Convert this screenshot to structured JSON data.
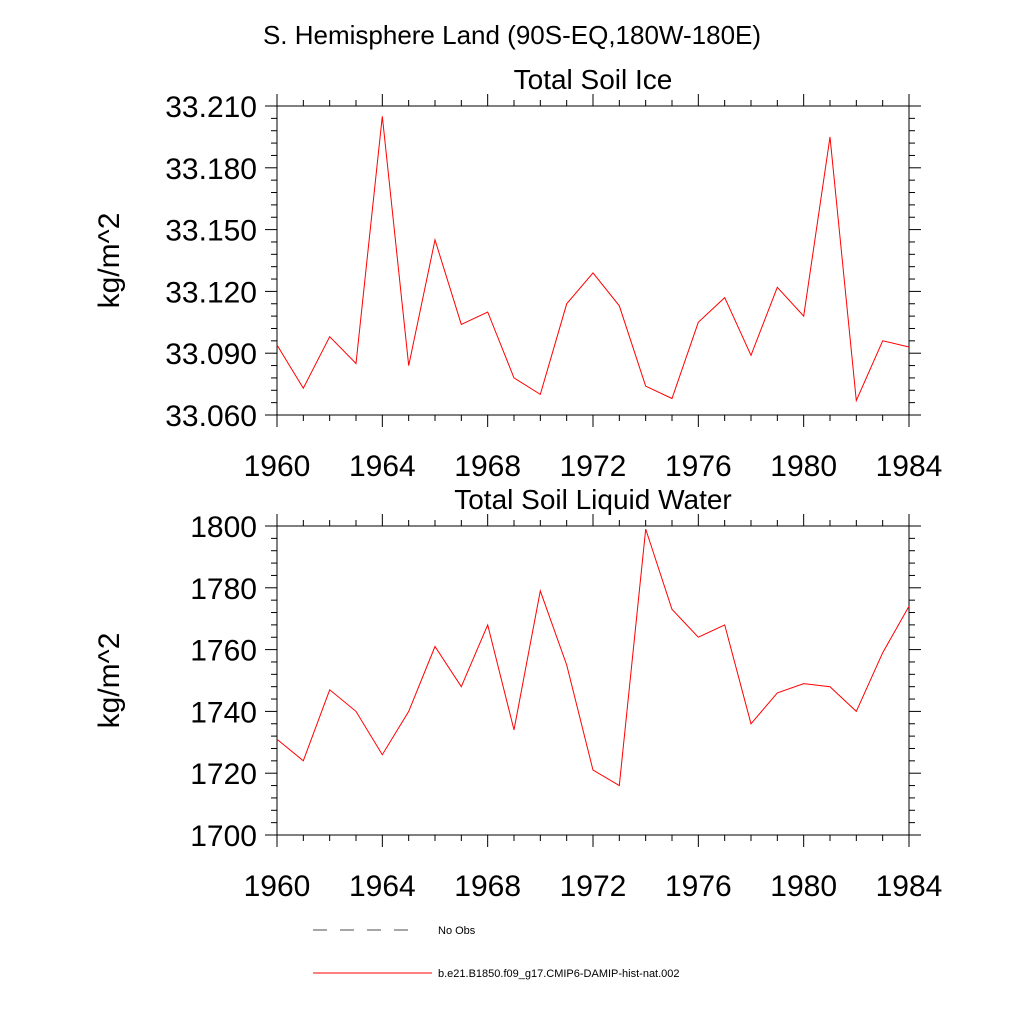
{
  "page_title": "S. Hemisphere Land (90S-EQ,180W-180E)",
  "colors": {
    "model_line": "#ff0000",
    "obs_line": "#4d4d4d",
    "axis": "#000000"
  },
  "legend": {
    "obs_label": "No Obs",
    "model_label": "b.e21.B1850.f09_g17.CMIP6-DAMIP-hist-nat.002"
  },
  "chart_data": [
    {
      "type": "line",
      "title": "Total Soil Ice",
      "ylabel": "kg/m^2",
      "xlabel": "",
      "xlim": [
        1960,
        1984
      ],
      "ylim": [
        33.06,
        33.21
      ],
      "xticks": [
        1960,
        1964,
        1968,
        1972,
        1976,
        1980,
        1984
      ],
      "xtick_labels": [
        "1960",
        "1964",
        "1968",
        "1972",
        "1976",
        "1980",
        "1984"
      ],
      "yticks": [
        33.06,
        33.09,
        33.12,
        33.15,
        33.18,
        33.21
      ],
      "ytick_labels": [
        "33.060",
        "33.090",
        "33.120",
        "33.150",
        "33.180",
        "33.210"
      ],
      "grid": false,
      "series": [
        {
          "name": "b.e21.B1850.f09_g17.CMIP6-DAMIP-hist-nat.002",
          "x": [
            1960,
            1961,
            1962,
            1963,
            1964,
            1965,
            1966,
            1967,
            1968,
            1969,
            1970,
            1971,
            1972,
            1973,
            1974,
            1975,
            1976,
            1977,
            1978,
            1979,
            1980,
            1981,
            1982,
            1983,
            1984
          ],
          "values": [
            33.094,
            33.073,
            33.098,
            33.085,
            33.205,
            33.084,
            33.145,
            33.104,
            33.11,
            33.078,
            33.07,
            33.114,
            33.129,
            33.113,
            33.074,
            33.068,
            33.105,
            33.117,
            33.089,
            33.122,
            33.108,
            33.195,
            33.067,
            33.096,
            33.093
          ]
        }
      ]
    },
    {
      "type": "line",
      "title": "Total Soil Liquid Water",
      "ylabel": "kg/m^2",
      "xlabel": "",
      "xlim": [
        1960,
        1984
      ],
      "ylim": [
        1700,
        1800
      ],
      "xticks": [
        1960,
        1964,
        1968,
        1972,
        1976,
        1980,
        1984
      ],
      "xtick_labels": [
        "1960",
        "1964",
        "1968",
        "1972",
        "1976",
        "1980",
        "1984"
      ],
      "yticks": [
        1700,
        1720,
        1740,
        1760,
        1780,
        1800
      ],
      "ytick_labels": [
        "1700",
        "1720",
        "1740",
        "1760",
        "1780",
        "1800"
      ],
      "grid": false,
      "series": [
        {
          "name": "b.e21.B1850.f09_g17.CMIP6-DAMIP-hist-nat.002",
          "x": [
            1960,
            1961,
            1962,
            1963,
            1964,
            1965,
            1966,
            1967,
            1968,
            1969,
            1970,
            1971,
            1972,
            1973,
            1974,
            1975,
            1976,
            1977,
            1978,
            1979,
            1980,
            1981,
            1982,
            1983,
            1984
          ],
          "values": [
            1731,
            1724,
            1747,
            1740,
            1726,
            1740,
            1761,
            1748,
            1768,
            1734,
            1779,
            1755,
            1721,
            1716,
            1799,
            1773,
            1764,
            1768,
            1736,
            1746,
            1749,
            1748,
            1740,
            1759,
            1774
          ]
        }
      ]
    }
  ]
}
